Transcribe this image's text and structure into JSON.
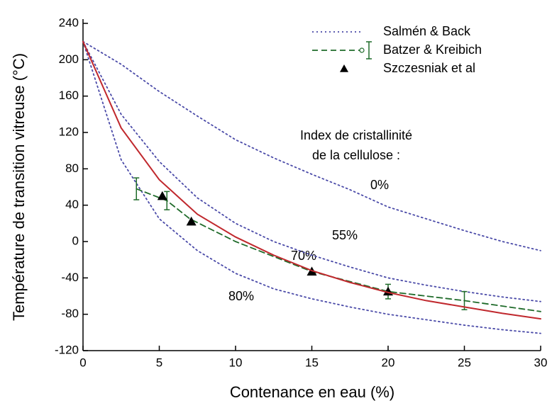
{
  "chart_data": {
    "type": "line",
    "xlabel": "Contenance en eau (%)",
    "ylabel": "Température de transition vitreuse (°C)",
    "xlim": [
      0,
      30
    ],
    "xticks": [
      0,
      5,
      10,
      15,
      20,
      25,
      30
    ],
    "ylim": [
      -120,
      240
    ],
    "yticks": [
      -120,
      -80,
      -40,
      0,
      40,
      80,
      120,
      160,
      200,
      240
    ],
    "annotations": [
      "Index de cristallinité",
      "de la cellulose :",
      "0%",
      "55%",
      "70%",
      "80%"
    ],
    "curves_x": [
      0,
      2.5,
      5,
      7.5,
      10,
      12.5,
      15,
      17.5,
      20,
      22.5,
      25,
      27.5,
      30
    ],
    "series": [
      {
        "name": "Salmén & Back",
        "color": "#4a4aa8",
        "style": "dotted",
        "curves": [
          [
            220,
            195,
            165,
            138,
            112,
            92,
            74,
            57,
            38,
            25,
            12,
            0,
            -10
          ],
          [
            220,
            140,
            88,
            48,
            20,
            0,
            -15,
            -28,
            -40,
            -48,
            -55,
            -61,
            -66
          ],
          [
            220,
            90,
            25,
            -10,
            -35,
            -52,
            -63,
            -72,
            -80,
            -86,
            -92,
            -97,
            -101
          ]
        ]
      },
      {
        "name": "Batzer & Kreibich",
        "color": "#1f6b2a",
        "style": "dashed",
        "x": [
          3.5,
          5.5,
          7,
          10,
          15,
          20,
          25,
          30
        ],
        "values": [
          58,
          45,
          25,
          0,
          -33,
          -55,
          -65,
          -77
        ],
        "errors": [
          12,
          10,
          null,
          null,
          null,
          8,
          10,
          null
        ]
      },
      {
        "name": "Szczesniak et al",
        "color": "#000000",
        "style": "triangle",
        "x": [
          5.2,
          7.1,
          15,
          20
        ],
        "values": [
          50,
          22,
          -33,
          -55
        ]
      },
      {
        "color": "#c0282d",
        "style": "solid",
        "values": [
          220,
          125,
          68,
          30,
          5,
          -15,
          -32,
          -45,
          -56,
          -65,
          -72,
          -79,
          -85
        ]
      }
    ]
  }
}
